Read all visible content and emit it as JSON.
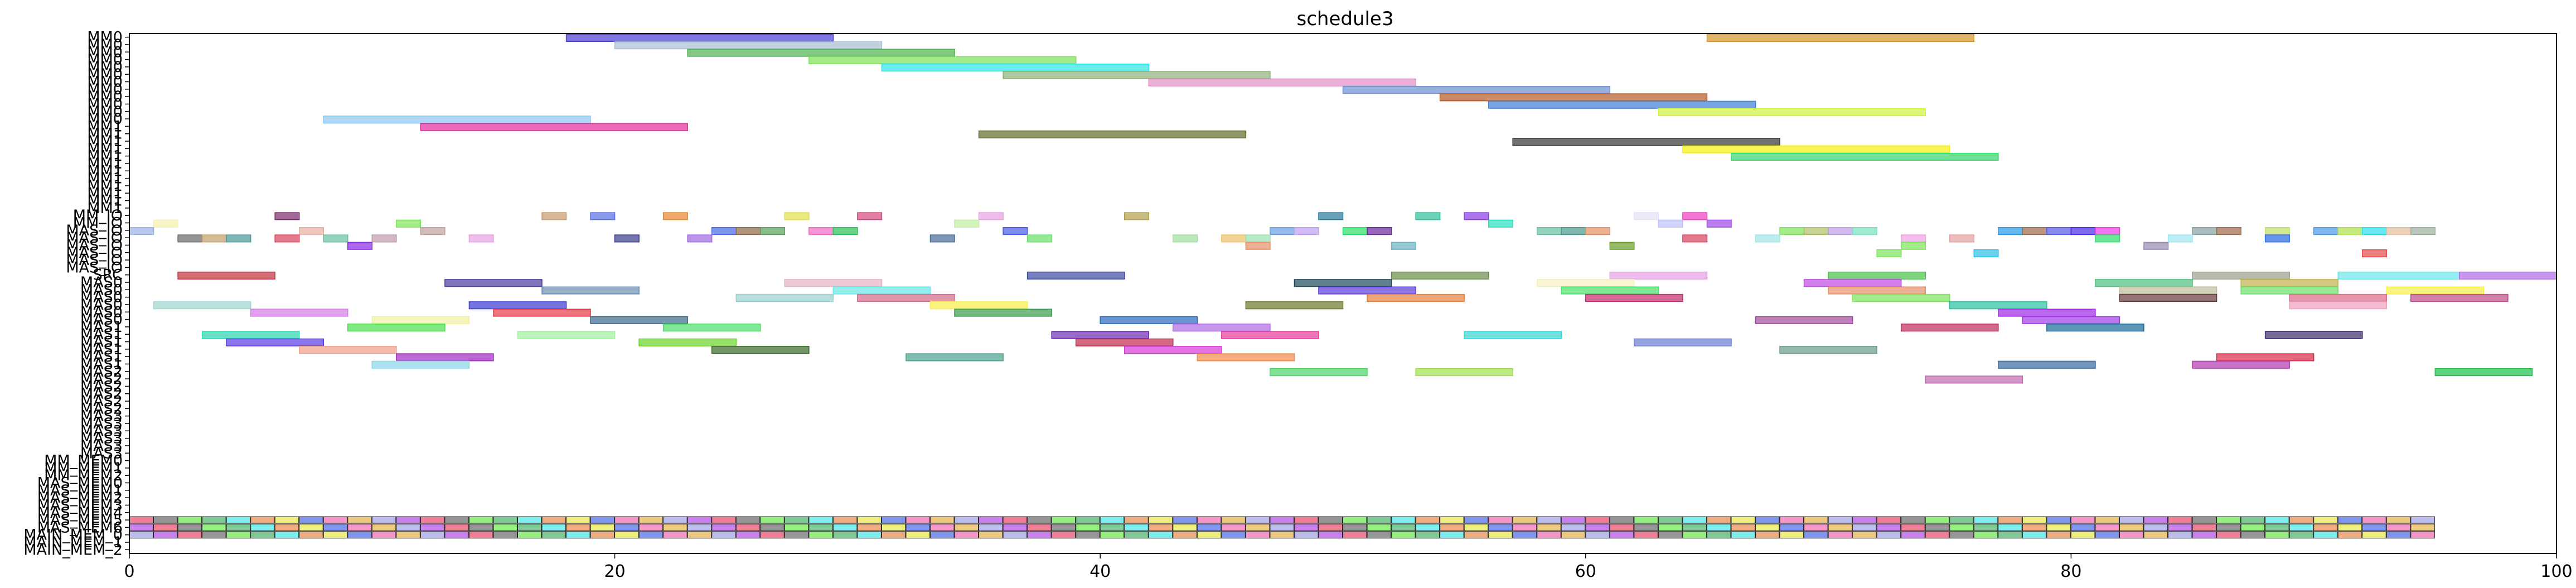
{
  "chart_data": {
    "type": "gantt",
    "title": "schedule3",
    "xlabel": "",
    "ylabel": "",
    "xlim": [
      0,
      100
    ],
    "xticks": [
      0,
      20,
      40,
      60,
      80,
      100
    ],
    "grid": false,
    "rows": [
      "MM0",
      "MM0",
      "MM0",
      "MM0",
      "MM0",
      "MM0",
      "MM0",
      "MM0",
      "MM0",
      "MM0",
      "MM0",
      "MM0",
      "MM1",
      "MM1",
      "MM1",
      "MM1",
      "MM1",
      "MM1",
      "MM1",
      "MM1",
      "MM1",
      "MM1",
      "MM1",
      "MM1",
      "MM_IO",
      "MM_IO",
      "MAS_IO",
      "MAS_IO",
      "MAS_IO",
      "MAS_IO",
      "MAS_IO",
      "MAS_IO",
      "SRC",
      "MAS0",
      "MAS0",
      "MAS0",
      "MAS0",
      "MAS0",
      "MAS0",
      "MAS1",
      "MAS1",
      "MAS1",
      "MAS1",
      "MAS1",
      "MAS1",
      "MAS2",
      "MAS2",
      "MAS2",
      "MAS2",
      "MAS2",
      "MAS2",
      "MAS3",
      "MAS3",
      "MAS3",
      "MAS3",
      "MAS3",
      "MAS3",
      "MM_MEM0",
      "MM_MEM1",
      "MM_MEM2",
      "MAS_MEM0",
      "MAS_MEM1",
      "MAS_MEM2",
      "MAS_MEM3",
      "MAS_MEM4",
      "MAS_MEM5",
      "MAS_MEM6",
      "MAIN_MEM_0",
      "MAIN_MEM_1",
      "MAIN_MEM_2"
    ],
    "tasks": [
      {
        "row": 0,
        "start": 18,
        "end": 29,
        "color": "#4b3fd6"
      },
      {
        "row": 0,
        "start": 65,
        "end": 76,
        "color": "#d6952f"
      },
      {
        "row": 1,
        "start": 20,
        "end": 31,
        "color": "#a8bfd4"
      },
      {
        "row": 2,
        "start": 23,
        "end": 34,
        "color": "#4fb04f"
      },
      {
        "row": 3,
        "start": 28,
        "end": 39,
        "color": "#7ee35a"
      },
      {
        "row": 4,
        "start": 31,
        "end": 42,
        "color": "#2ee6e6"
      },
      {
        "row": 5,
        "start": 36,
        "end": 47,
        "color": "#8fb07a"
      },
      {
        "row": 6,
        "start": 42,
        "end": 53,
        "color": "#e48fc8"
      },
      {
        "row": 7,
        "start": 50,
        "end": 61,
        "color": "#6e8fd0"
      },
      {
        "row": 8,
        "start": 54,
        "end": 65,
        "color": "#b45a2a"
      },
      {
        "row": 9,
        "start": 56,
        "end": 67,
        "color": "#3d7fd6"
      },
      {
        "row": 10,
        "start": 63,
        "end": 74,
        "color": "#cff23a"
      },
      {
        "row": 11,
        "start": 8,
        "end": 19,
        "color": "#8ec8f0"
      },
      {
        "row": 12,
        "start": 12,
        "end": 23,
        "color": "#e22a9a"
      },
      {
        "row": 13,
        "start": 35,
        "end": 46,
        "color": "#5e6b2a"
      },
      {
        "row": 14,
        "start": 57,
        "end": 68,
        "color": "#333333"
      },
      {
        "row": 15,
        "start": 64,
        "end": 75,
        "color": "#f7f20a"
      },
      {
        "row": 16,
        "start": 66,
        "end": 77,
        "color": "#33d66b"
      },
      {
        "row": 24,
        "start": 6,
        "end": 7,
        "color": "#7a2a6b"
      },
      {
        "row": 24,
        "start": 17,
        "end": 18,
        "color": "#c79a6b"
      },
      {
        "row": 24,
        "start": 19,
        "end": 20,
        "color": "#5a6ee6"
      },
      {
        "row": 24,
        "start": 22,
        "end": 23,
        "color": "#e6862a"
      },
      {
        "row": 24,
        "start": 27,
        "end": 28,
        "color": "#e0e04a"
      },
      {
        "row": 24,
        "start": 30,
        "end": 31,
        "color": "#d6457a"
      },
      {
        "row": 24,
        "start": 35,
        "end": 36,
        "color": "#e6a0e0"
      },
      {
        "row": 24,
        "start": 41,
        "end": 42,
        "color": "#b0a04a"
      },
      {
        "row": 24,
        "start": 49,
        "end": 50,
        "color": "#2a7a9a"
      },
      {
        "row": 24,
        "start": 53,
        "end": 54,
        "color": "#2ac09a"
      },
      {
        "row": 24,
        "start": 55,
        "end": 56,
        "color": "#8a3ae6"
      },
      {
        "row": 24,
        "start": 62,
        "end": 63,
        "color": "#e6e0f6"
      },
      {
        "row": 24,
        "start": 64,
        "end": 65,
        "color": "#f03ac0"
      },
      {
        "row": 25,
        "start": 1,
        "end": 2,
        "color": "#f6f0b0"
      },
      {
        "row": 25,
        "start": 11,
        "end": 12,
        "color": "#7ee35a"
      },
      {
        "row": 25,
        "start": 34,
        "end": 35,
        "color": "#c0f0a0"
      },
      {
        "row": 25,
        "start": 56,
        "end": 57,
        "color": "#2ae0c0"
      },
      {
        "row": 25,
        "start": 63,
        "end": 64,
        "color": "#c0c0f6"
      },
      {
        "row": 25,
        "start": 65,
        "end": 66,
        "color": "#9a4ae6"
      },
      {
        "row": 26,
        "start": 0,
        "end": 1,
        "color": "#9ab0e6"
      },
      {
        "row": 26,
        "start": 7,
        "end": 8,
        "color": "#e6b0a0"
      },
      {
        "row": 26,
        "start": 12,
        "end": 13,
        "color": "#c0a0a0"
      },
      {
        "row": 26,
        "start": 24,
        "end": 25,
        "color": "#4a6ae6"
      },
      {
        "row": 26,
        "start": 25,
        "end": 26,
        "color": "#8a6a4a"
      },
      {
        "row": 26,
        "start": 26,
        "end": 27,
        "color": "#5aa05a"
      },
      {
        "row": 26,
        "start": 28,
        "end": 29,
        "color": "#f06ac0"
      },
      {
        "row": 26,
        "start": 29,
        "end": 30,
        "color": "#2ac05a"
      },
      {
        "row": 26,
        "start": 36,
        "end": 37,
        "color": "#4a5ae6"
      },
      {
        "row": 26,
        "start": 47,
        "end": 48,
        "color": "#6aa0e0"
      },
      {
        "row": 26,
        "start": 48,
        "end": 49,
        "color": "#c0a0f0"
      },
      {
        "row": 26,
        "start": 50,
        "end": 51,
        "color": "#2ae06a"
      },
      {
        "row": 26,
        "start": 51,
        "end": 52,
        "color": "#6a2a9a"
      },
      {
        "row": 26,
        "start": 58,
        "end": 59,
        "color": "#6ac0a0"
      },
      {
        "row": 26,
        "start": 59,
        "end": 60,
        "color": "#4a9a8a"
      },
      {
        "row": 26,
        "start": 60,
        "end": 61,
        "color": "#e6906a"
      },
      {
        "row": 26,
        "start": 68,
        "end": 69,
        "color": "#7ee35a"
      },
      {
        "row": 26,
        "start": 69,
        "end": 70,
        "color": "#b0c06a"
      },
      {
        "row": 26,
        "start": 70,
        "end": 71,
        "color": "#c0a0e6"
      },
      {
        "row": 26,
        "start": 71,
        "end": 72,
        "color": "#7ae0c0"
      },
      {
        "row": 26,
        "start": 77,
        "end": 78,
        "color": "#2a9ae6"
      },
      {
        "row": 26,
        "start": 78,
        "end": 79,
        "color": "#9a6a4a"
      },
      {
        "row": 26,
        "start": 79,
        "end": 80,
        "color": "#5a5ae6"
      },
      {
        "row": 26,
        "start": 80,
        "end": 81,
        "color": "#4a2ae6"
      },
      {
        "row": 26,
        "start": 81,
        "end": 82,
        "color": "#f03ae6"
      },
      {
        "row": 26,
        "start": 85,
        "end": 86,
        "color": "#8aa0a0"
      },
      {
        "row": 26,
        "start": 86,
        "end": 87,
        "color": "#a06a4a"
      },
      {
        "row": 26,
        "start": 88,
        "end": 89,
        "color": "#c0e06a"
      },
      {
        "row": 26,
        "start": 90,
        "end": 91,
        "color": "#4a9ae6"
      },
      {
        "row": 26,
        "start": 91,
        "end": 92,
        "color": "#b0e04a"
      },
      {
        "row": 26,
        "start": 92,
        "end": 93,
        "color": "#2ae0e6"
      },
      {
        "row": 26,
        "start": 93,
        "end": 94,
        "color": "#e0c0a0"
      },
      {
        "row": 26,
        "start": 94,
        "end": 95,
        "color": "#9ab0a0"
      },
      {
        "row": 27,
        "start": 2,
        "end": 3,
        "color": "#6a6a6a"
      },
      {
        "row": 27,
        "start": 3,
        "end": 4,
        "color": "#c0a06a"
      },
      {
        "row": 27,
        "start": 4,
        "end": 5,
        "color": "#4a9a9a"
      },
      {
        "row": 27,
        "start": 6,
        "end": 7,
        "color": "#d6455a"
      },
      {
        "row": 27,
        "start": 8,
        "end": 9,
        "color": "#6ac0a0"
      },
      {
        "row": 27,
        "start": 10,
        "end": 11,
        "color": "#c09ab0"
      },
      {
        "row": 27,
        "start": 14,
        "end": 15,
        "color": "#e6a0e6"
      },
      {
        "row": 27,
        "start": 20,
        "end": 21,
        "color": "#3a3a8a"
      },
      {
        "row": 27,
        "start": 23,
        "end": 24,
        "color": "#a06ae6"
      },
      {
        "row": 27,
        "start": 33,
        "end": 34,
        "color": "#4a6a9a"
      },
      {
        "row": 27,
        "start": 37,
        "end": 38,
        "color": "#6ae06a"
      },
      {
        "row": 27,
        "start": 43,
        "end": 44,
        "color": "#a0e0a0"
      },
      {
        "row": 27,
        "start": 45,
        "end": 46,
        "color": "#f0c06a"
      },
      {
        "row": 27,
        "start": 46,
        "end": 47,
        "color": "#9ae0b0"
      },
      {
        "row": 27,
        "start": 64,
        "end": 65,
        "color": "#d6455a"
      },
      {
        "row": 27,
        "start": 67,
        "end": 68,
        "color": "#a0e6e6"
      },
      {
        "row": 27,
        "start": 73,
        "end": 74,
        "color": "#f0a0e6"
      },
      {
        "row": 27,
        "start": 75,
        "end": 76,
        "color": "#e6a0a0"
      },
      {
        "row": 27,
        "start": 81,
        "end": 82,
        "color": "#2ae06a"
      },
      {
        "row": 27,
        "start": 84,
        "end": 85,
        "color": "#a0e6f0"
      },
      {
        "row": 27,
        "start": 88,
        "end": 89,
        "color": "#2a6ae6"
      },
      {
        "row": 28,
        "start": 9,
        "end": 10,
        "color": "#8a2ae6"
      },
      {
        "row": 28,
        "start": 46,
        "end": 47,
        "color": "#e6906a"
      },
      {
        "row": 28,
        "start": 52,
        "end": 53,
        "color": "#6ab0c0"
      },
      {
        "row": 28,
        "start": 61,
        "end": 62,
        "color": "#6aa02a"
      },
      {
        "row": 28,
        "start": 73,
        "end": 74,
        "color": "#7ee35a"
      },
      {
        "row": 28,
        "start": 83,
        "end": 84,
        "color": "#9a8ab0"
      },
      {
        "row": 29,
        "start": 72,
        "end": 73,
        "color": "#7ee35a"
      },
      {
        "row": 29,
        "start": 76,
        "end": 77,
        "color": "#2ac0e6"
      },
      {
        "row": 29,
        "start": 92,
        "end": 93,
        "color": "#e64a4a"
      },
      {
        "row": 32,
        "start": 2,
        "end": 6,
        "color": "#c0303a"
      },
      {
        "row": 32,
        "start": 37,
        "end": 41,
        "color": "#3a4aa0"
      },
      {
        "row": 32,
        "start": 52,
        "end": 56,
        "color": "#6a8a4a"
      },
      {
        "row": 32,
        "start": 61,
        "end": 65,
        "color": "#e6a0e6"
      },
      {
        "row": 32,
        "start": 70,
        "end": 74,
        "color": "#4ac04a"
      },
      {
        "row": 32,
        "start": 85,
        "end": 89,
        "color": "#9aa08a"
      },
      {
        "row": 32,
        "start": 91,
        "end": 96,
        "color": "#6ae6e6"
      },
      {
        "row": 32,
        "start": 96,
        "end": 100,
        "color": "#b06ae6"
      },
      {
        "row": 33,
        "start": 13,
        "end": 17,
        "color": "#4a3aa0"
      },
      {
        "row": 33,
        "start": 27,
        "end": 31,
        "color": "#e6b0c0"
      },
      {
        "row": 33,
        "start": 48,
        "end": 52,
        "color": "#1a4a5a"
      },
      {
        "row": 33,
        "start": 58,
        "end": 62,
        "color": "#f6f0c0"
      },
      {
        "row": 33,
        "start": 69,
        "end": 73,
        "color": "#c04ae6"
      },
      {
        "row": 33,
        "start": 81,
        "end": 85,
        "color": "#4ac07a"
      },
      {
        "row": 33,
        "start": 87,
        "end": 91,
        "color": "#c0b04a"
      },
      {
        "row": 34,
        "start": 17,
        "end": 21,
        "color": "#6a8ab0"
      },
      {
        "row": 34,
        "start": 29,
        "end": 33,
        "color": "#6ae6e6"
      },
      {
        "row": 34,
        "start": 49,
        "end": 53,
        "color": "#5a3ad6"
      },
      {
        "row": 34,
        "start": 59,
        "end": 63,
        "color": "#4ae06a"
      },
      {
        "row": 34,
        "start": 70,
        "end": 74,
        "color": "#e6906a"
      },
      {
        "row": 34,
        "start": 82,
        "end": 86,
        "color": "#c0c0a0"
      },
      {
        "row": 34,
        "start": 87,
        "end": 91,
        "color": "#6ae06a"
      },
      {
        "row": 34,
        "start": 93,
        "end": 97,
        "color": "#f6f04a"
      },
      {
        "row": 35,
        "start": 25,
        "end": 29,
        "color": "#9ad0d0"
      },
      {
        "row": 35,
        "start": 30,
        "end": 34,
        "color": "#d66a8a"
      },
      {
        "row": 35,
        "start": 51,
        "end": 55,
        "color": "#e6803a"
      },
      {
        "row": 35,
        "start": 60,
        "end": 64,
        "color": "#c02a6a"
      },
      {
        "row": 35,
        "start": 71,
        "end": 75,
        "color": "#7ee35a"
      },
      {
        "row": 35,
        "start": 82,
        "end": 86,
        "color": "#6a3a3a"
      },
      {
        "row": 35,
        "start": 89,
        "end": 93,
        "color": "#e06a8a"
      },
      {
        "row": 35,
        "start": 94,
        "end": 98,
        "color": "#c04a8a"
      },
      {
        "row": 36,
        "start": 1,
        "end": 5,
        "color": "#a0d6d0"
      },
      {
        "row": 36,
        "start": 14,
        "end": 18,
        "color": "#3a3ad6"
      },
      {
        "row": 36,
        "start": 33,
        "end": 37,
        "color": "#f6f04a"
      },
      {
        "row": 36,
        "start": 46,
        "end": 50,
        "color": "#6a7a2a"
      },
      {
        "row": 36,
        "start": 75,
        "end": 79,
        "color": "#2ac0a0"
      },
      {
        "row": 36,
        "start": 89,
        "end": 93,
        "color": "#f0a0c0"
      },
      {
        "row": 37,
        "start": 5,
        "end": 9,
        "color": "#d67ae6"
      },
      {
        "row": 37,
        "start": 15,
        "end": 19,
        "color": "#e63a4a"
      },
      {
        "row": 37,
        "start": 34,
        "end": 38,
        "color": "#3a9a4a"
      },
      {
        "row": 37,
        "start": 77,
        "end": 81,
        "color": "#a02ae6"
      },
      {
        "row": 38,
        "start": 10,
        "end": 14,
        "color": "#f0f0a0"
      },
      {
        "row": 38,
        "start": 19,
        "end": 23,
        "color": "#3a6a8a"
      },
      {
        "row": 38,
        "start": 40,
        "end": 44,
        "color": "#2a6ac0"
      },
      {
        "row": 38,
        "start": 67,
        "end": 71,
        "color": "#a04a9a"
      },
      {
        "row": 38,
        "start": 78,
        "end": 82,
        "color": "#a03ae6"
      },
      {
        "row": 39,
        "start": 9,
        "end": 13,
        "color": "#4ae04a"
      },
      {
        "row": 39,
        "start": 22,
        "end": 26,
        "color": "#4ae06a"
      },
      {
        "row": 39,
        "start": 43,
        "end": 47,
        "color": "#b06ae6"
      },
      {
        "row": 39,
        "start": 73,
        "end": 77,
        "color": "#c02a5a"
      },
      {
        "row": 39,
        "start": 79,
        "end": 83,
        "color": "#1a6a9a"
      },
      {
        "row": 40,
        "start": 3,
        "end": 7,
        "color": "#2ad6b0"
      },
      {
        "row": 40,
        "start": 16,
        "end": 20,
        "color": "#a0f0a0"
      },
      {
        "row": 40,
        "start": 38,
        "end": 42,
        "color": "#6a2ab0"
      },
      {
        "row": 40,
        "start": 45,
        "end": 49,
        "color": "#e63a9a"
      },
      {
        "row": 40,
        "start": 55,
        "end": 59,
        "color": "#3ad6d6"
      },
      {
        "row": 40,
        "start": 88,
        "end": 92,
        "color": "#3a2a6a"
      },
      {
        "row": 41,
        "start": 4,
        "end": 8,
        "color": "#5a3ae6"
      },
      {
        "row": 41,
        "start": 21,
        "end": 25,
        "color": "#6ad62a"
      },
      {
        "row": 41,
        "start": 39,
        "end": 43,
        "color": "#c02a4a"
      },
      {
        "row": 41,
        "start": 62,
        "end": 66,
        "color": "#6a7ad6"
      },
      {
        "row": 42,
        "start": 7,
        "end": 11,
        "color": "#f0a08a"
      },
      {
        "row": 42,
        "start": 24,
        "end": 28,
        "color": "#3a6a2a"
      },
      {
        "row": 42,
        "start": 41,
        "end": 45,
        "color": "#d63ad6"
      },
      {
        "row": 42,
        "start": 68,
        "end": 72,
        "color": "#6a9a8a"
      },
      {
        "row": 43,
        "start": 11,
        "end": 15,
        "color": "#a02ac0"
      },
      {
        "row": 43,
        "start": 32,
        "end": 36,
        "color": "#4aa08a"
      },
      {
        "row": 43,
        "start": 44,
        "end": 48,
        "color": "#f08a4a"
      },
      {
        "row": 43,
        "start": 86,
        "end": 90,
        "color": "#d62a4a"
      },
      {
        "row": 44,
        "start": 10,
        "end": 14,
        "color": "#8ad6e6"
      },
      {
        "row": 44,
        "start": 77,
        "end": 81,
        "color": "#3a6aa0"
      },
      {
        "row": 44,
        "start": 85,
        "end": 89,
        "color": "#b03ab0"
      },
      {
        "row": 45,
        "start": 47,
        "end": 51,
        "color": "#4ad66a"
      },
      {
        "row": 45,
        "start": 53,
        "end": 57,
        "color": "#a0e04a"
      },
      {
        "row": 45,
        "start": 95,
        "end": 99,
        "color": "#1ac04a"
      },
      {
        "row": 46,
        "start": 74,
        "end": 78,
        "color": "#c06ab0"
      }
    ],
    "mem_rows": [
      65,
      66,
      67
    ],
    "mem_colors": [
      "#e64a6a",
      "#4a6ae6",
      "#6ae64a",
      "#e6b04a",
      "#4ae6e6",
      "#b04ae6",
      "#e6e64a",
      "#6a6a6a",
      "#f06ab0",
      "#4ab06a",
      "#a0a0e6",
      "#e68a4a"
    ]
  }
}
